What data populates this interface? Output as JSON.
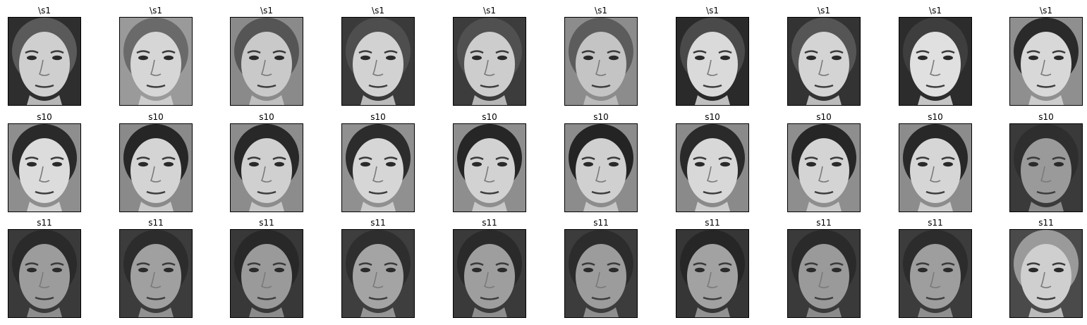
{
  "figure": {
    "rows": [
      {
        "subject": "\\s1",
        "titles": [
          "\\s1",
          "\\s1",
          "\\s1",
          "\\s1",
          "\\s1",
          "\\s1",
          "\\s1",
          "\\s1",
          "\\s1",
          "\\s1"
        ],
        "skin": [
          "#cfcfcf",
          "#d6d6d6",
          "#c9c9c9",
          "#d2d2d2",
          "#cdcdcd",
          "#c4c4c4",
          "#dadada",
          "#d4d4d4",
          "#e0e0e0",
          "#d8d8d8"
        ],
        "hair": [
          "#5a5a5a",
          "#6a6a6a",
          "#555555",
          "#4e4e4e",
          "#505050",
          "#5c5c5c",
          "#4a4a4a",
          "#555555",
          "#3e3e3e",
          "#2a2a2a"
        ],
        "background": [
          "#2e2e2e",
          "#9a9a9a",
          "#8a8a8a",
          "#3a3a3a",
          "#3c3c3c",
          "#8c8c8c",
          "#2a2a2a",
          "#333333",
          "#2c2c2c",
          "#8f8f8f"
        ]
      },
      {
        "subject": "s10",
        "titles": [
          "s10",
          "s10",
          "s10",
          "s10",
          "s10",
          "s10",
          "s10",
          "s10",
          "s10",
          "s10"
        ],
        "skin": [
          "#dcdcdc",
          "#d4d4d4",
          "#d0d0d0",
          "#d6d6d6",
          "#d2d2d2",
          "#d0d0d0",
          "#d8d8d8",
          "#d4d4d4",
          "#d6d6d6",
          "#9a9a9a"
        ],
        "hair": [
          "#2a2a2a",
          "#262626",
          "#282828",
          "#2c2c2c",
          "#262626",
          "#242424",
          "#2a2a2a",
          "#262626",
          "#282828",
          "#2e2e2e"
        ],
        "background": [
          "#8e8e8e",
          "#8a8a8a",
          "#8c8c8c",
          "#909090",
          "#8e8e8e",
          "#8c8c8c",
          "#8a8a8a",
          "#8e8e8e",
          "#8c8c8c",
          "#3a3a3a"
        ]
      },
      {
        "subject": "s11",
        "titles": [
          "s11",
          "s11",
          "s11",
          "s11",
          "s11",
          "s11",
          "s11",
          "s11",
          "s11",
          "s11"
        ],
        "skin": [
          "#9c9c9c",
          "#a0a0a0",
          "#9a9a9a",
          "#a4a4a4",
          "#9e9e9e",
          "#9c9c9c",
          "#a2a2a2",
          "#9a9a9a",
          "#9e9e9e",
          "#cfcfcf"
        ],
        "hair": [
          "#2a2a2a",
          "#2c2c2c",
          "#282828",
          "#2e2e2e",
          "#2a2a2a",
          "#2c2c2c",
          "#262626",
          "#2a2a2a",
          "#2c2c2c",
          "#9a9a9a"
        ],
        "background": [
          "#3a3a3a",
          "#3c3c3c",
          "#383838",
          "#3e3e3e",
          "#3a3a3a",
          "#3c3c3c",
          "#363636",
          "#3a3a3a",
          "#3c3c3c",
          "#4a4a4a"
        ]
      }
    ]
  }
}
